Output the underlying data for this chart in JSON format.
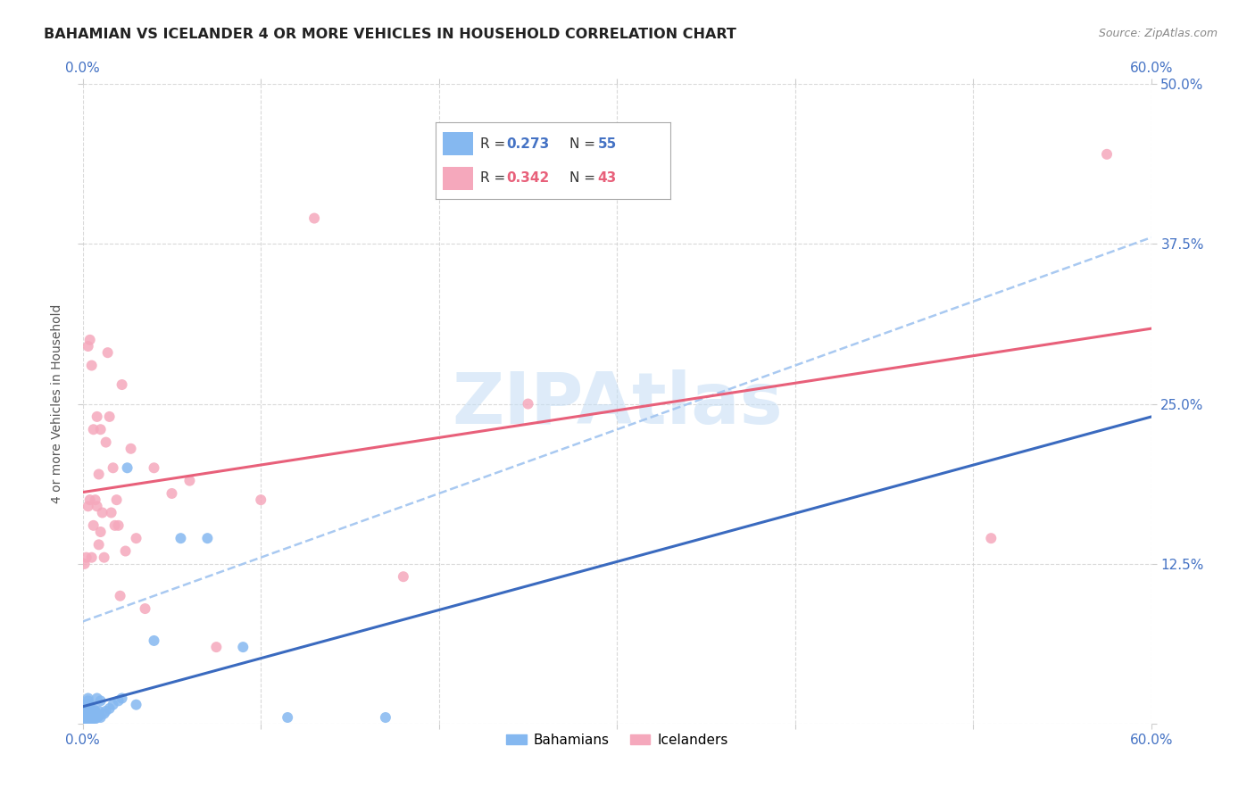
{
  "title": "BAHAMIAN VS ICELANDER 4 OR MORE VEHICLES IN HOUSEHOLD CORRELATION CHART",
  "source": "Source: ZipAtlas.com",
  "ylabel": "4 or more Vehicles in Household",
  "xlim": [
    0.0,
    0.6
  ],
  "ylim": [
    0.0,
    0.5
  ],
  "xticks": [
    0.0,
    0.1,
    0.2,
    0.3,
    0.4,
    0.5,
    0.6
  ],
  "yticks": [
    0.0,
    0.125,
    0.25,
    0.375,
    0.5
  ],
  "xticklabels_right": [
    "0.0%",
    "",
    "",
    "",
    "",
    "",
    "60.0%"
  ],
  "yticklabels_right": [
    "",
    "12.5%",
    "25.0%",
    "37.5%",
    "50.0%"
  ],
  "xticklabels_bottom": [
    "0.0%",
    "",
    "",
    "",
    "",
    "",
    "60.0%"
  ],
  "background_color": "#ffffff",
  "grid_color": "#d0d0d0",
  "bahamian_dot_color": "#85b8f0",
  "icelander_dot_color": "#f5a8bc",
  "bahamian_line_color": "#3a6abf",
  "icelander_line_color": "#e8607a",
  "dashed_line_color": "#a0c4f0",
  "R_bahamian": 0.273,
  "N_bahamian": 55,
  "R_icelander": 0.342,
  "N_icelander": 43,
  "legend_bahamian": "Bahamians",
  "legend_icelander": "Icelanders",
  "watermark_text": "ZIPAtlas",
  "watermark_color": "#c8dff5",
  "title_color": "#222222",
  "source_color": "#888888",
  "tick_color": "#4472c4",
  "bahamian_x": [
    0.001,
    0.001,
    0.001,
    0.002,
    0.002,
    0.002,
    0.002,
    0.002,
    0.003,
    0.003,
    0.003,
    0.003,
    0.003,
    0.003,
    0.003,
    0.003,
    0.003,
    0.003,
    0.004,
    0.004,
    0.004,
    0.004,
    0.004,
    0.004,
    0.005,
    0.005,
    0.005,
    0.005,
    0.006,
    0.006,
    0.006,
    0.007,
    0.007,
    0.007,
    0.008,
    0.008,
    0.008,
    0.009,
    0.009,
    0.01,
    0.01,
    0.012,
    0.013,
    0.015,
    0.017,
    0.02,
    0.022,
    0.025,
    0.03,
    0.04,
    0.055,
    0.07,
    0.09,
    0.115,
    0.17
  ],
  "bahamian_y": [
    0.005,
    0.008,
    0.01,
    0.003,
    0.005,
    0.008,
    0.01,
    0.015,
    0.002,
    0.003,
    0.005,
    0.007,
    0.008,
    0.01,
    0.012,
    0.015,
    0.018,
    0.02,
    0.002,
    0.004,
    0.006,
    0.008,
    0.01,
    0.015,
    0.003,
    0.005,
    0.008,
    0.01,
    0.005,
    0.008,
    0.012,
    0.004,
    0.007,
    0.01,
    0.005,
    0.008,
    0.02,
    0.006,
    0.01,
    0.005,
    0.018,
    0.008,
    0.01,
    0.012,
    0.015,
    0.018,
    0.02,
    0.2,
    0.015,
    0.065,
    0.145,
    0.145,
    0.06,
    0.005,
    0.005
  ],
  "icelander_x": [
    0.001,
    0.002,
    0.003,
    0.003,
    0.004,
    0.004,
    0.005,
    0.005,
    0.006,
    0.006,
    0.007,
    0.008,
    0.008,
    0.009,
    0.009,
    0.01,
    0.01,
    0.011,
    0.012,
    0.013,
    0.014,
    0.015,
    0.016,
    0.017,
    0.018,
    0.019,
    0.02,
    0.021,
    0.022,
    0.024,
    0.027,
    0.03,
    0.035,
    0.04,
    0.05,
    0.06,
    0.075,
    0.1,
    0.13,
    0.18,
    0.25,
    0.51,
    0.575
  ],
  "icelander_y": [
    0.125,
    0.13,
    0.295,
    0.17,
    0.3,
    0.175,
    0.13,
    0.28,
    0.155,
    0.23,
    0.175,
    0.17,
    0.24,
    0.195,
    0.14,
    0.23,
    0.15,
    0.165,
    0.13,
    0.22,
    0.29,
    0.24,
    0.165,
    0.2,
    0.155,
    0.175,
    0.155,
    0.1,
    0.265,
    0.135,
    0.215,
    0.145,
    0.09,
    0.2,
    0.18,
    0.19,
    0.06,
    0.175,
    0.395,
    0.115,
    0.25,
    0.145,
    0.445
  ]
}
